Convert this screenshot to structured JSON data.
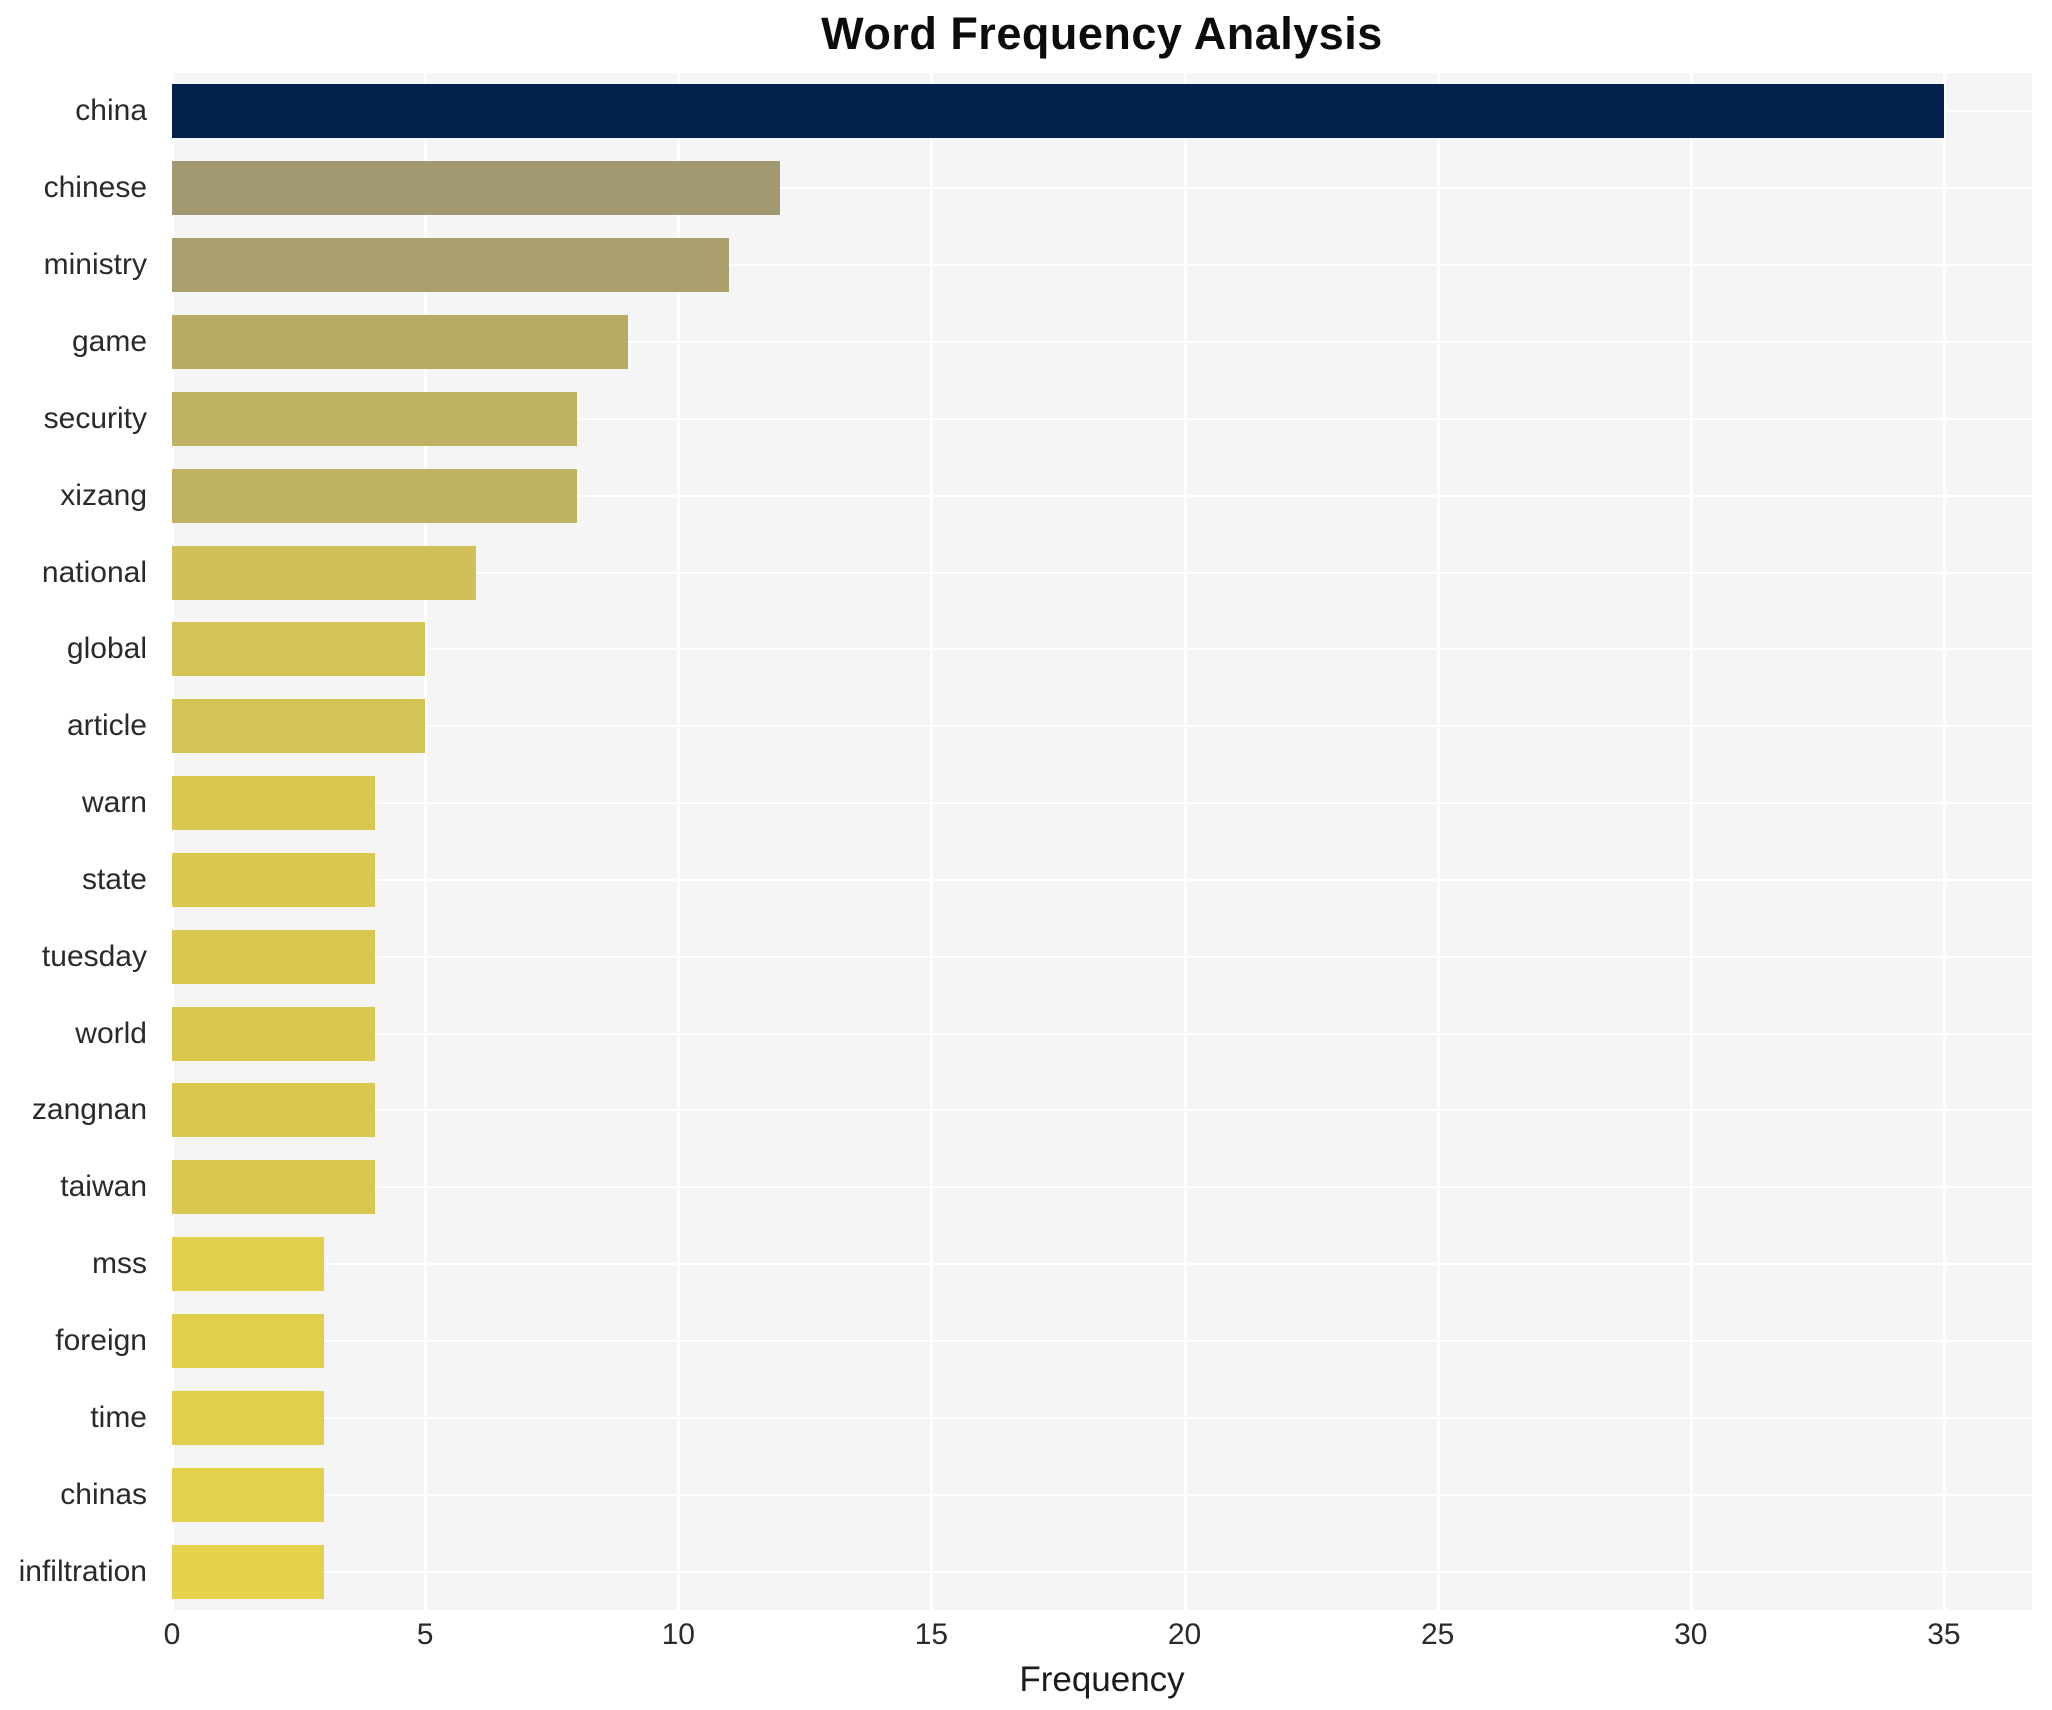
{
  "chart_data": {
    "type": "bar",
    "orientation": "horizontal",
    "title": "Word Frequency Analysis",
    "xlabel": "Frequency",
    "ylabel": "",
    "xlim": [
      0,
      36.74
    ],
    "xticks": [
      0,
      5,
      10,
      15,
      20,
      25,
      30,
      35
    ],
    "grid": true,
    "legend": "none",
    "categories": [
      "china",
      "chinese",
      "ministry",
      "game",
      "security",
      "xizang",
      "national",
      "global",
      "article",
      "warn",
      "state",
      "tuesday",
      "world",
      "zangnan",
      "taiwan",
      "mss",
      "foreign",
      "time",
      "chinas",
      "infiltration"
    ],
    "values": [
      35,
      12,
      11,
      9,
      8,
      8,
      6,
      5,
      5,
      4,
      4,
      4,
      4,
      4,
      4,
      3,
      3,
      3,
      3,
      3
    ],
    "bar_colors": [
      "#03234e",
      "#a29971",
      "#a9a06d",
      "#b7ab66",
      "#bfb262",
      "#bfb262",
      "#cfc058",
      "#d3c455",
      "#d3c455",
      "#d9c750",
      "#d9c750",
      "#d9c750",
      "#d9c750",
      "#d9c750",
      "#d9c750",
      "#e1ce4d",
      "#e1ce4d",
      "#e1ce4d",
      "#e3d04c",
      "#e5d14b"
    ]
  },
  "colors": {
    "figure_background": "#ffffff",
    "plot_background": "#f5f5f6",
    "gridline": "#ffffff",
    "title_text": "#0c0c0c",
    "tick_text": "#2a2a2a",
    "axis_label_text": "#1c1c1c",
    "max_bar": "#03234e",
    "min_bar": "#e5d14b"
  }
}
